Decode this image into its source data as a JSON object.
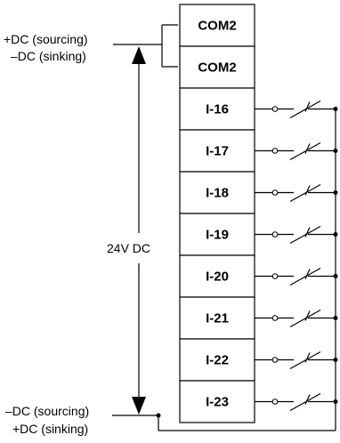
{
  "top_supply": {
    "line1": "+DC (sourcing)",
    "line2": "–DC (sinking)"
  },
  "bottom_supply": {
    "line1": "–DC (sourcing)",
    "line2": "+DC (sinking)"
  },
  "voltage": "24V DC",
  "common_terminals": [
    "COM2",
    "COM2"
  ],
  "input_terminals": [
    "I-16",
    "I-17",
    "I-18",
    "I-19",
    "I-20",
    "I-21",
    "I-22",
    "I-23"
  ]
}
